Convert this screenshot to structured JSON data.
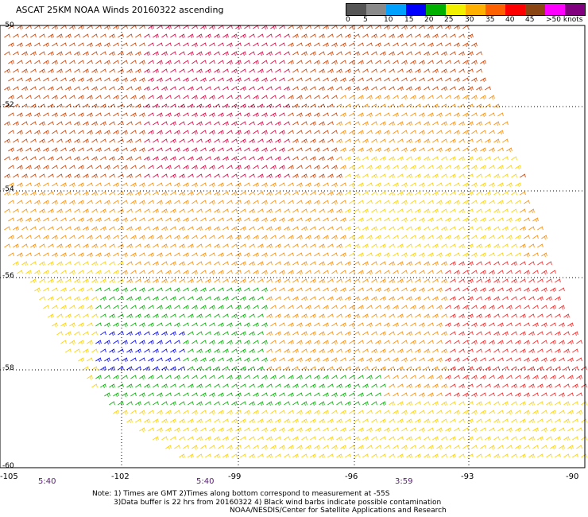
{
  "title": "ASCAT 25KM NOAA Winds 20160322 ascending",
  "colorbar": {
    "labels": [
      "0",
      "5",
      "10",
      "15",
      "20",
      "25",
      "30",
      "35",
      "40",
      "45",
      ">50 knots"
    ],
    "colors": [
      "#555555",
      "#8a8a8a",
      "#00a0ff",
      "#0000ff",
      "#00b000",
      "#f0f000",
      "#ffb000",
      "#ff6000",
      "#ff0000",
      "#8b4513",
      "#ff00ff",
      "#800080"
    ]
  },
  "axes": {
    "lat_labels": [
      "-50",
      "-52",
      "-54",
      "-56",
      "-58",
      "-60"
    ],
    "lon_labels": [
      "-105",
      "-102",
      "-99",
      "-96",
      "-93",
      "-90"
    ]
  },
  "times": [
    "5:40",
    "5:40",
    "3:59"
  ],
  "notes": {
    "line1": "Note: 1) Times are GMT 2)Times along bottom correspond to measurement at -55S",
    "line2": "3)Data buffer is 22 hrs from 20160322 4) Black wind barbs indicate possible contamination",
    "line3": "NOAA/NESDIS/Center for Satellite Applications and Research"
  }
}
